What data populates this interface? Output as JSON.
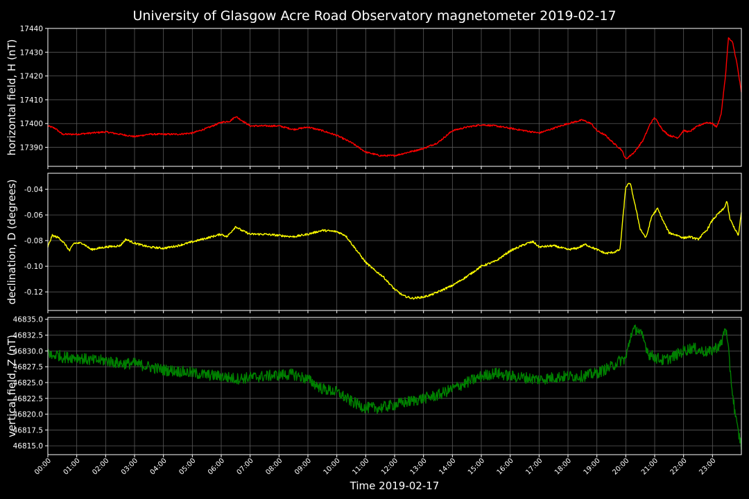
{
  "chart_data": {
    "type": "line",
    "title": "University of Glasgow Acre Road Observatory magnetometer 2019-02-17",
    "xlabel": "Time 2019-02-17",
    "x_ticks": [
      "00:00",
      "01:00",
      "02:00",
      "03:00",
      "04:00",
      "05:00",
      "06:00",
      "07:00",
      "08:00",
      "09:00",
      "10:00",
      "11:00",
      "12:00",
      "13:00",
      "14:00",
      "15:00",
      "16:00",
      "17:00",
      "18:00",
      "19:00",
      "20:00",
      "21:00",
      "22:00",
      "23:00"
    ],
    "xlim_hours": [
      0,
      24
    ],
    "grid": true,
    "panels": [
      {
        "name": "H",
        "ylabel": "horizontal field, H (nT)",
        "color": "#ff0000",
        "ylim": [
          17382,
          17440
        ],
        "yticks": [
          17390,
          17400,
          17410,
          17420,
          17430,
          17440
        ],
        "tick_decimals": 0,
        "noise": 0.35,
        "x": [
          0,
          0.25,
          0.5,
          1,
          1.5,
          2,
          2.5,
          3,
          3.5,
          4,
          4.5,
          5,
          5.5,
          6,
          6.3,
          6.5,
          6.75,
          7,
          7.5,
          8,
          8.5,
          9,
          9.5,
          10,
          10.5,
          11,
          11.5,
          12,
          12.5,
          13,
          13.5,
          14,
          14.5,
          15,
          15.5,
          16,
          16.5,
          17,
          17.5,
          18,
          18.5,
          18.8,
          19,
          19.3,
          19.6,
          19.85,
          20,
          20.1,
          20.3,
          20.6,
          20.85,
          21,
          21.3,
          21.5,
          21.8,
          22,
          22.2,
          22.5,
          22.8,
          23,
          23.15,
          23.3,
          23.45,
          23.55,
          23.7,
          23.85,
          24
        ],
        "y": [
          17399,
          17398,
          17395.5,
          17395.5,
          17396,
          17396.5,
          17395.5,
          17394.5,
          17395.5,
          17395.5,
          17395.5,
          17396,
          17398,
          17400.5,
          17401,
          17403,
          17401,
          17399,
          17399,
          17399,
          17397.5,
          17398.5,
          17397,
          17395,
          17392,
          17388,
          17386.5,
          17386.5,
          17388,
          17389.5,
          17392,
          17397,
          17398.5,
          17399.5,
          17399,
          17398,
          17397,
          17396,
          17398,
          17400,
          17401.5,
          17400,
          17397,
          17395,
          17391.5,
          17389,
          17385,
          17386,
          17388,
          17393,
          17400,
          17402.5,
          17397,
          17395,
          17394,
          17397,
          17396.5,
          17399,
          17400.5,
          17400,
          17398.5,
          17404,
          17420,
          17436,
          17434,
          17425,
          17413
        ]
      },
      {
        "name": "D",
        "ylabel": "declination, D (degrees)",
        "color": "#ffff00",
        "ylim": [
          -0.1345,
          -0.0275
        ],
        "yticks": [
          -0.12,
          -0.1,
          -0.08,
          -0.06,
          -0.04
        ],
        "tick_decimals": 2,
        "noise": 0.0008,
        "x": [
          0,
          0.15,
          0.4,
          0.6,
          0.75,
          0.9,
          1.2,
          1.5,
          2,
          2.5,
          2.7,
          3,
          3.5,
          4,
          4.5,
          5,
          5.5,
          6,
          6.2,
          6.5,
          6.7,
          7,
          7.5,
          8,
          8.5,
          9,
          9.5,
          10,
          10.3,
          10.6,
          11,
          11.3,
          11.6,
          12,
          12.3,
          12.6,
          13,
          13.3,
          13.6,
          14,
          14.5,
          15,
          15.5,
          16,
          16.3,
          16.6,
          16.8,
          17,
          17.5,
          18,
          18.3,
          18.6,
          19,
          19.3,
          19.6,
          19.8,
          20,
          20.15,
          20.3,
          20.5,
          20.7,
          20.9,
          21.1,
          21.3,
          21.5,
          21.8,
          22,
          22.2,
          22.5,
          22.8,
          23,
          23.2,
          23.4,
          23.5,
          23.6,
          23.8,
          23.9,
          24
        ],
        "y": [
          -0.085,
          -0.076,
          -0.078,
          -0.083,
          -0.088,
          -0.082,
          -0.082,
          -0.087,
          -0.085,
          -0.084,
          -0.079,
          -0.082,
          -0.085,
          -0.086,
          -0.084,
          -0.081,
          -0.078,
          -0.075,
          -0.077,
          -0.069,
          -0.072,
          -0.075,
          -0.075,
          -0.076,
          -0.077,
          -0.075,
          -0.072,
          -0.073,
          -0.076,
          -0.085,
          -0.097,
          -0.103,
          -0.108,
          -0.118,
          -0.123,
          -0.125,
          -0.124,
          -0.122,
          -0.119,
          -0.115,
          -0.108,
          -0.1,
          -0.096,
          -0.088,
          -0.085,
          -0.082,
          -0.081,
          -0.085,
          -0.084,
          -0.087,
          -0.086,
          -0.083,
          -0.087,
          -0.09,
          -0.089,
          -0.087,
          -0.038,
          -0.035,
          -0.05,
          -0.071,
          -0.078,
          -0.061,
          -0.055,
          -0.065,
          -0.074,
          -0.076,
          -0.078,
          -0.077,
          -0.079,
          -0.072,
          -0.064,
          -0.059,
          -0.055,
          -0.049,
          -0.063,
          -0.072,
          -0.076,
          -0.058
        ]
      },
      {
        "name": "Z",
        "ylabel": "vertical field, Z (nT)",
        "color": "#008000",
        "ylim": [
          46813.6,
          46835.3
        ],
        "yticks": [
          46815.0,
          46817.5,
          46820.0,
          46822.5,
          46825.0,
          46827.5,
          46830.0,
          46832.5,
          46835.0
        ],
        "tick_decimals": 1,
        "noise": 0.9,
        "x": [
          0,
          0.15,
          0.3,
          0.5,
          1,
          1.5,
          2,
          2.5,
          3,
          3.5,
          4,
          4.5,
          5,
          5.5,
          6,
          6.5,
          7,
          7.5,
          8,
          8.5,
          9,
          9.5,
          10,
          10.5,
          11,
          11.5,
          12,
          12.5,
          13,
          13.5,
          14,
          14.5,
          15,
          15.5,
          16,
          16.5,
          17,
          17.5,
          18,
          18.5,
          19,
          19.5,
          19.8,
          20,
          20.2,
          20.4,
          20.6,
          20.8,
          21,
          21.3,
          21.6,
          22,
          22.3,
          22.6,
          22.9,
          23.1,
          23.3,
          23.45,
          23.55,
          23.7,
          23.85,
          24
        ],
        "y": [
          46830,
          46829,
          46829.5,
          46829,
          46829,
          46828.5,
          46828.5,
          46828,
          46828,
          46827.5,
          46827,
          46826.8,
          46826.5,
          46826.2,
          46826,
          46825.6,
          46825.8,
          46826,
          46826.2,
          46826.3,
          46825.5,
          46824,
          46823.5,
          46822,
          46821,
          46821,
          46821.5,
          46822,
          46822.5,
          46823,
          46824,
          46825,
          46826,
          46826.5,
          46826,
          46825.8,
          46825.5,
          46825.8,
          46826,
          46826,
          46826.5,
          46827.5,
          46828.5,
          46828.8,
          46833,
          46833.5,
          46832,
          46829.5,
          46829,
          46828.5,
          46829,
          46830,
          46830.5,
          46830,
          46829.8,
          46830.5,
          46831,
          46834,
          46830,
          46823,
          46818,
          46815
        ]
      }
    ]
  }
}
